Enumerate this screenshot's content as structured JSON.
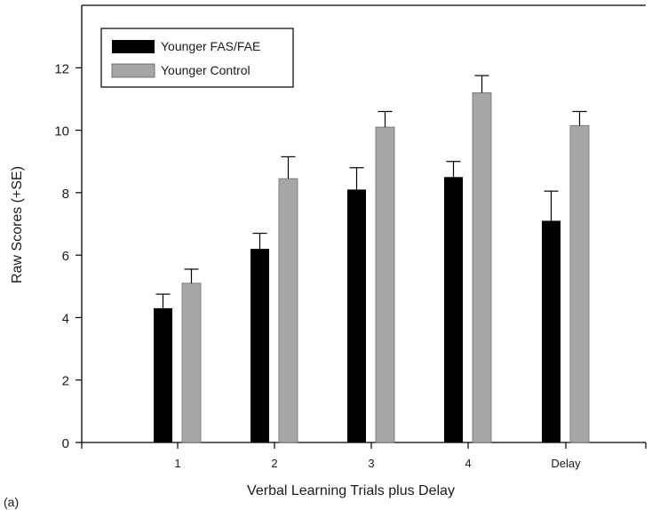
{
  "chart_data": {
    "type": "bar",
    "panel_label": "(a)",
    "title": "",
    "xlabel": "Verbal Learning Trials plus Delay",
    "ylabel": "Raw Scores (+SE)",
    "ylim": [
      0,
      14
    ],
    "yticks": [
      0,
      2,
      4,
      6,
      8,
      10,
      12
    ],
    "categories": [
      "1",
      "2",
      "3",
      "4",
      "Delay"
    ],
    "legend_position": "top-left",
    "grid": false,
    "series": [
      {
        "name": "Younger FAS/FAE",
        "color": "#000000",
        "values": [
          4.3,
          6.2,
          8.1,
          8.5,
          7.1
        ],
        "errors": [
          0.45,
          0.5,
          0.7,
          0.5,
          0.95
        ]
      },
      {
        "name": "Younger Control",
        "color": "#a6a6a6",
        "values": [
          5.1,
          8.45,
          10.1,
          11.2,
          10.15
        ],
        "errors": [
          0.45,
          0.7,
          0.5,
          0.55,
          0.45
        ]
      }
    ]
  }
}
